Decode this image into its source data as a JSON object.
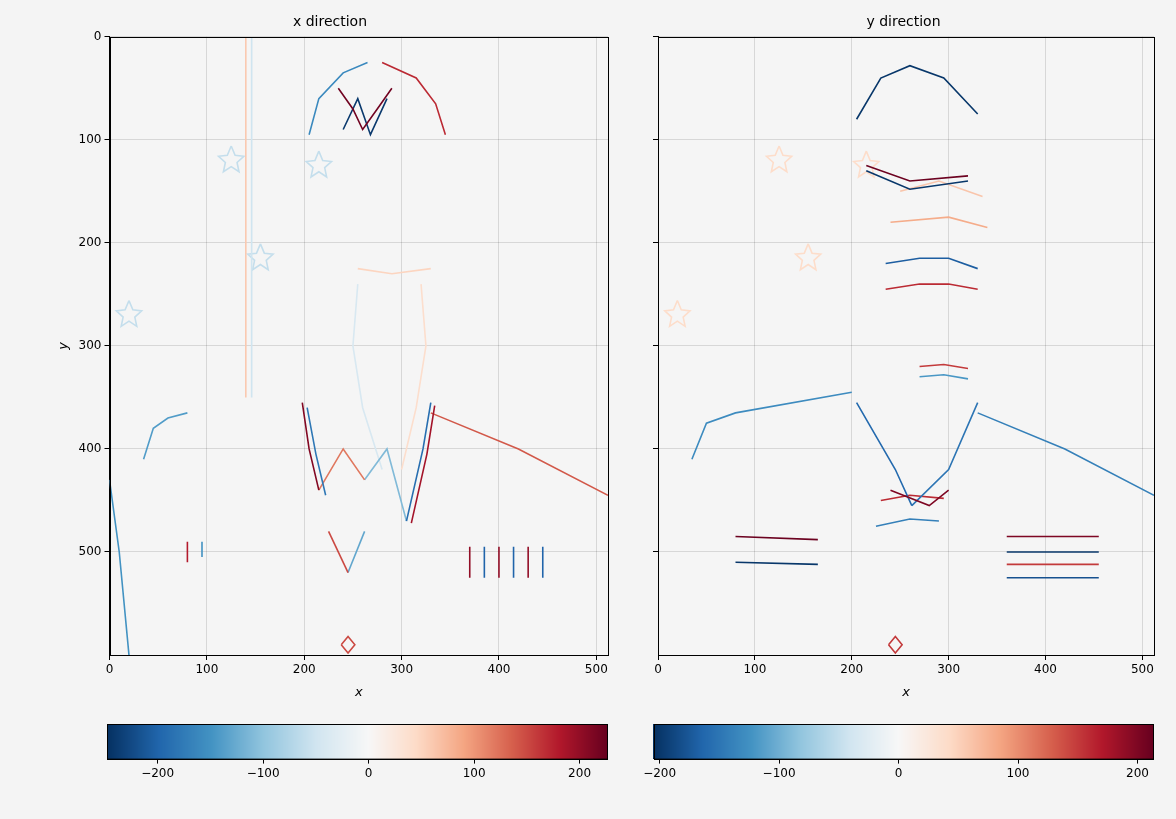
{
  "chart_data": [
    {
      "type": "line",
      "title": "x direction",
      "x_label": "x",
      "y_label": "y",
      "xlim": [
        0,
        512
      ],
      "ylim": [
        600,
        0
      ],
      "xticks": [
        0,
        100,
        200,
        300,
        400,
        500
      ],
      "yticks": [
        0,
        100,
        200,
        300,
        400,
        500
      ],
      "grid": true,
      "colorbar": {
        "range": [
          -248,
          226
        ],
        "ticks": [
          {
            "value": -200,
            "label": "−200"
          },
          {
            "value": -100,
            "label": "−100"
          },
          0,
          100,
          200
        ]
      },
      "edges": [
        {
          "x": [
            198,
            205,
            215
          ],
          "y": [
            355,
            400,
            440
          ],
          "value": 210
        },
        {
          "x": [
            203,
            212,
            222
          ],
          "y": [
            360,
            405,
            445
          ],
          "value": -180
        },
        {
          "x": [
            330,
            322,
            305
          ],
          "y": [
            355,
            400,
            470
          ],
          "value": -190
        },
        {
          "x": [
            334,
            326,
            310
          ],
          "y": [
            358,
            405,
            472
          ],
          "value": 190
        },
        {
          "x": [
            215,
            240,
            262
          ],
          "y": [
            440,
            400,
            430
          ],
          "value": 120
        },
        {
          "x": [
            262,
            285,
            305
          ],
          "y": [
            430,
            400,
            470
          ],
          "value": -110
        },
        {
          "x": [
            225,
            245
          ],
          "y": [
            480,
            520
          ],
          "value": 150
        },
        {
          "x": [
            245,
            262
          ],
          "y": [
            520,
            480
          ],
          "value": -130
        },
        {
          "x": [
            330,
            420,
            512
          ],
          "y": [
            365,
            400,
            445
          ],
          "value": 140
        },
        {
          "x": [
            35,
            45,
            60,
            80
          ],
          "y": [
            410,
            380,
            370,
            365
          ],
          "value": -140
        },
        {
          "x": [
            0,
            10,
            20
          ],
          "y": [
            430,
            500,
            600
          ],
          "value": -150
        },
        {
          "x": [
            140,
            140
          ],
          "y": [
            0,
            350
          ],
          "value": 60
        },
        {
          "x": [
            146,
            146
          ],
          "y": [
            0,
            350
          ],
          "value": -50
        },
        {
          "x": [
            205,
            215,
            240,
            265
          ],
          "y": [
            95,
            60,
            35,
            25
          ],
          "value": -160
        },
        {
          "x": [
            280,
            315,
            335,
            345
          ],
          "y": [
            25,
            40,
            65,
            95
          ],
          "value": 170
        },
        {
          "x": [
            235,
            250,
            260,
            275,
            290
          ],
          "y": [
            50,
            70,
            90,
            70,
            50
          ],
          "value": 220
        },
        {
          "x": [
            240,
            255,
            268,
            285
          ],
          "y": [
            90,
            60,
            95,
            60
          ],
          "value": -240
        },
        {
          "x": [
            255,
            250,
            260,
            280
          ],
          "y": [
            240,
            300,
            360,
            420
          ],
          "value": -40
        },
        {
          "x": [
            320,
            325,
            315,
            300
          ],
          "y": [
            240,
            300,
            360,
            420
          ],
          "value": 40
        },
        {
          "x": [
            255,
            290,
            330
          ],
          "y": [
            225,
            230,
            225
          ],
          "value": 50
        },
        {
          "x": [
            80,
            80
          ],
          "y": [
            490,
            510
          ],
          "value": 180
        },
        {
          "x": [
            95,
            95
          ],
          "y": [
            490,
            505
          ],
          "value": -150
        },
        {
          "x": [
            370,
            370
          ],
          "y": [
            495,
            525
          ],
          "value": 200
        },
        {
          "x": [
            385,
            385
          ],
          "y": [
            495,
            525
          ],
          "value": -200
        },
        {
          "x": [
            400,
            400
          ],
          "y": [
            495,
            525
          ],
          "value": 200
        },
        {
          "x": [
            415,
            415
          ],
          "y": [
            495,
            525
          ],
          "value": -200
        },
        {
          "x": [
            430,
            430
          ],
          "y": [
            495,
            525
          ],
          "value": 200
        },
        {
          "x": [
            445,
            445
          ],
          "y": [
            495,
            525
          ],
          "value": -200
        },
        {
          "x": [
            238,
            245,
            252,
            245,
            238
          ],
          "y": [
            590,
            582,
            590,
            598,
            590
          ],
          "value": 150
        },
        {
          "x": [
            125,
            129,
            138,
            131,
            133,
            125,
            117,
            119,
            112,
            121,
            125
          ],
          "y": [
            106,
            115,
            116,
            122,
            131,
            126,
            131,
            122,
            116,
            115,
            106
          ],
          "value": -60
        },
        {
          "x": [
            215,
            219,
            228,
            221,
            223,
            215,
            207,
            209,
            202,
            211,
            215
          ],
          "y": [
            111,
            120,
            121,
            127,
            136,
            131,
            136,
            127,
            121,
            120,
            111
          ],
          "value": -60
        },
        {
          "x": [
            155,
            159,
            168,
            161,
            163,
            155,
            147,
            149,
            142,
            151,
            155
          ],
          "y": [
            201,
            210,
            211,
            217,
            226,
            221,
            226,
            217,
            211,
            210,
            201
          ],
          "value": -60
        },
        {
          "x": [
            20,
            24,
            33,
            26,
            28,
            20,
            12,
            14,
            7,
            16,
            20
          ],
          "y": [
            256,
            265,
            266,
            272,
            281,
            276,
            281,
            272,
            266,
            265,
            256
          ],
          "value": -60
        }
      ]
    },
    {
      "type": "line",
      "title": "y direction",
      "x_label": "x",
      "xlim": [
        0,
        512
      ],
      "ylim": [
        600,
        0
      ],
      "xticks": [
        0,
        100,
        200,
        300,
        400,
        500
      ],
      "yticks": [
        0,
        100,
        200,
        300,
        400,
        500
      ],
      "grid": true,
      "tick_labels": "x",
      "colorbar": {
        "range": [
          -205,
          213
        ],
        "ticks": [
          {
            "value": -200,
            "label": "−200"
          },
          {
            "value": -100,
            "label": "−100"
          },
          0,
          100,
          200
        ]
      },
      "edges": [
        {
          "x": [
            205,
            230,
            260,
            295,
            330
          ],
          "y": [
            80,
            40,
            28,
            40,
            75
          ],
          "value": -200
        },
        {
          "x": [
            215,
            260,
            320
          ],
          "y": [
            125,
            140,
            135
          ],
          "value": 210
        },
        {
          "x": [
            215,
            260,
            320
          ],
          "y": [
            130,
            148,
            140
          ],
          "value": -200
        },
        {
          "x": [
            235,
            270,
            300,
            330
          ],
          "y": [
            220,
            215,
            215,
            225
          ],
          "value": -170
        },
        {
          "x": [
            235,
            270,
            300,
            330
          ],
          "y": [
            245,
            240,
            240,
            245
          ],
          "value": 160
        },
        {
          "x": [
            240,
            300,
            340
          ],
          "y": [
            180,
            175,
            185
          ],
          "value": 80
        },
        {
          "x": [
            270,
            295,
            320
          ],
          "y": [
            320,
            318,
            322
          ],
          "value": 150
        },
        {
          "x": [
            270,
            295,
            320
          ],
          "y": [
            330,
            328,
            332
          ],
          "value": -120
        },
        {
          "x": [
            240,
            280,
            300
          ],
          "y": [
            440,
            455,
            440
          ],
          "value": 200
        },
        {
          "x": [
            205,
            245,
            262
          ],
          "y": [
            355,
            420,
            455
          ],
          "value": -160
        },
        {
          "x": [
            330,
            300,
            262
          ],
          "y": [
            355,
            420,
            455
          ],
          "value": -150
        },
        {
          "x": [
            230,
            260,
            295
          ],
          "y": [
            450,
            445,
            448
          ],
          "value": 160
        },
        {
          "x": [
            225,
            260,
            290
          ],
          "y": [
            475,
            468,
            470
          ],
          "value": -140
        },
        {
          "x": [
            330,
            420,
            512
          ],
          "y": [
            365,
            400,
            445
          ],
          "value": -140
        },
        {
          "x": [
            35,
            50,
            80,
            200
          ],
          "y": [
            410,
            375,
            365,
            345
          ],
          "value": -130
        },
        {
          "x": [
            80,
            165
          ],
          "y": [
            485,
            488
          ],
          "value": 210
        },
        {
          "x": [
            80,
            165
          ],
          "y": [
            510,
            512
          ],
          "value": -200
        },
        {
          "x": [
            360,
            455
          ],
          "y": [
            485,
            485
          ],
          "value": 200
        },
        {
          "x": [
            360,
            455
          ],
          "y": [
            500,
            500
          ],
          "value": -200
        },
        {
          "x": [
            360,
            455
          ],
          "y": [
            512,
            512
          ],
          "value": 150
        },
        {
          "x": [
            360,
            455
          ],
          "y": [
            525,
            525
          ],
          "value": -180
        },
        {
          "x": [
            250,
            290,
            335
          ],
          "y": [
            150,
            140,
            155
          ],
          "value": 60
        },
        {
          "x": [
            238,
            245,
            252,
            245,
            238
          ],
          "y": [
            590,
            582,
            590,
            598,
            590
          ],
          "value": 150
        },
        {
          "x": [
            125,
            129,
            138,
            131,
            133,
            125,
            117,
            119,
            112,
            121,
            125
          ],
          "y": [
            106,
            115,
            116,
            122,
            131,
            126,
            131,
            122,
            116,
            115,
            106
          ],
          "value": 40
        },
        {
          "x": [
            215,
            219,
            228,
            221,
            223,
            215,
            207,
            209,
            202,
            211,
            215
          ],
          "y": [
            111,
            120,
            121,
            127,
            136,
            131,
            136,
            127,
            121,
            120,
            111
          ],
          "value": 40
        },
        {
          "x": [
            155,
            159,
            168,
            161,
            163,
            155,
            147,
            149,
            142,
            151,
            155
          ],
          "y": [
            201,
            210,
            211,
            217,
            226,
            221,
            226,
            217,
            211,
            210,
            201
          ],
          "value": 40
        },
        {
          "x": [
            20,
            24,
            33,
            26,
            28,
            20,
            12,
            14,
            7,
            16,
            20
          ],
          "y": [
            256,
            265,
            266,
            272,
            281,
            276,
            281,
            272,
            266,
            265,
            256
          ],
          "value": 40
        }
      ]
    }
  ]
}
